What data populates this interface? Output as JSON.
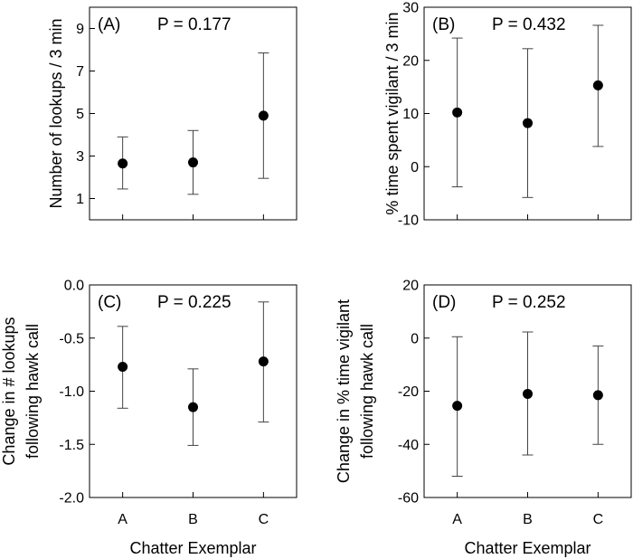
{
  "chart_data": [
    {
      "type": "scatter",
      "panel": "(A)",
      "annotation": "P = 0.177",
      "ylabel": "Number of lookups / 3 min",
      "xlabel": "",
      "ylim": [
        0,
        10
      ],
      "yticks": [
        1,
        3,
        5,
        7,
        9
      ],
      "ytick_labels": [
        "1",
        "3",
        "5",
        "7",
        "9"
      ],
      "categories": [
        "A",
        "B",
        "C"
      ],
      "values": [
        2.65,
        2.7,
        4.9
      ],
      "err_low": [
        1.45,
        1.2,
        1.95
      ],
      "err_high": [
        3.9,
        4.2,
        7.85
      ]
    },
    {
      "type": "scatter",
      "panel": "(B)",
      "annotation": "P = 0.432",
      "ylabel": "% time spent vigilant / 3 min",
      "xlabel": "",
      "ylim": [
        -10,
        30
      ],
      "yticks": [
        -10,
        0,
        10,
        20,
        30
      ],
      "ytick_labels": [
        "-10",
        "0",
        "10",
        "20",
        "30"
      ],
      "categories": [
        "A",
        "B",
        "C"
      ],
      "values": [
        10.2,
        8.2,
        15.3
      ],
      "err_low": [
        -3.8,
        -5.8,
        3.8
      ],
      "err_high": [
        24.2,
        22.2,
        26.6
      ]
    },
    {
      "type": "scatter",
      "panel": "(C)",
      "annotation": "P = 0.225",
      "ylabel_lines": [
        "Change in # lookups",
        "following hawk call"
      ],
      "xlabel": "Chatter Exemplar",
      "ylim": [
        -2.0,
        0.0
      ],
      "yticks": [
        -2.0,
        -1.5,
        -1.0,
        -0.5,
        0.0
      ],
      "ytick_labels": [
        "-2.0",
        "-1.5",
        "-1.0",
        "-0.5",
        "0.0"
      ],
      "categories": [
        "A",
        "B",
        "C"
      ],
      "values": [
        -0.77,
        -1.15,
        -0.72
      ],
      "err_low": [
        -1.16,
        -1.51,
        -1.29
      ],
      "err_high": [
        -0.39,
        -0.79,
        -0.16
      ]
    },
    {
      "type": "scatter",
      "panel": "(D)",
      "annotation": "P = 0.252",
      "ylabel_lines": [
        "Change in % time vigilant",
        "following hawk call"
      ],
      "xlabel": "Chatter Exemplar",
      "ylim": [
        -60,
        20
      ],
      "yticks": [
        -60,
        -40,
        -20,
        0,
        20
      ],
      "ytick_labels": [
        "-60",
        "-40",
        "-20",
        "0",
        "20"
      ],
      "categories": [
        "A",
        "B",
        "C"
      ],
      "values": [
        -25.5,
        -21.0,
        -21.5
      ],
      "err_low": [
        -52.0,
        -44.0,
        -40.0
      ],
      "err_high": [
        0.5,
        2.3,
        -3.0
      ]
    }
  ]
}
